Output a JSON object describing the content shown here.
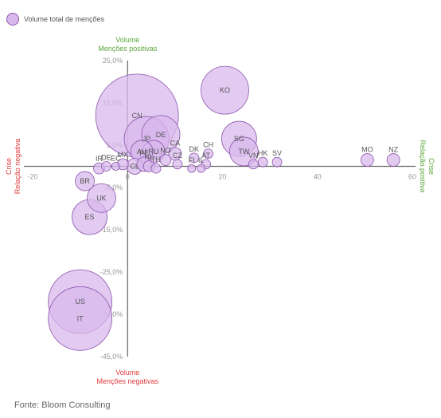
{
  "legend": {
    "label": "Volume total de menções"
  },
  "source": "Fonte: Bloom Consulting",
  "colors": {
    "bubble_fill": "#d8b8ec",
    "bubble_stroke": "#8d55ad",
    "positive": "#5aa53a",
    "negative": "#e03a3a",
    "axis": "#666666",
    "tick": "#999999",
    "label": "#555555"
  },
  "chart_data": {
    "type": "bubble",
    "x_axis": {
      "range": [
        -20,
        60
      ],
      "ticks": [
        -20,
        0,
        20,
        40,
        60
      ],
      "tick_labels": [
        "-20",
        "0",
        "20",
        "40",
        "60"
      ],
      "left_title": [
        "Crise",
        "Relação negativa"
      ],
      "right_title": [
        "Crise",
        "Relação positiva"
      ]
    },
    "y_axis": {
      "range": [
        -45,
        25
      ],
      "ticks": [
        25,
        15,
        5,
        -5,
        -15,
        -25,
        -35,
        -45
      ],
      "tick_labels": [
        "25,0%",
        "15,0%",
        "5,0%",
        "-5,0%",
        "-15,0%",
        "-25,0%",
        "-35,0%",
        "-45,0%"
      ],
      "top_title": [
        "Volume",
        "Menções positivas"
      ],
      "bottom_title": [
        "Volume",
        "Menções negativas"
      ]
    },
    "points": [
      {
        "label": "KO",
        "x": 20.5,
        "y": 18.0,
        "size": 30
      },
      {
        "label": "CN",
        "x": 2.0,
        "y": 12.0,
        "size": 52
      },
      {
        "label": "SG",
        "x": 23.5,
        "y": 6.5,
        "size": 22
      },
      {
        "label": "DE",
        "x": 7.0,
        "y": 7.5,
        "size": 24
      },
      {
        "label": "JP",
        "x": 4.0,
        "y": 6.5,
        "size": 28
      },
      {
        "label": "RU",
        "x": 5.5,
        "y": 3.5,
        "size": 14
      },
      {
        "label": "AU",
        "x": 3.0,
        "y": 3.5,
        "size": 14
      },
      {
        "label": "TW",
        "x": 24.5,
        "y": 3.5,
        "size": 18
      },
      {
        "label": "CA",
        "x": 10.0,
        "y": 3.0,
        "size": 8
      },
      {
        "label": "CH",
        "x": 17.0,
        "y": 3.0,
        "size": 6
      },
      {
        "label": "DK",
        "x": 14.0,
        "y": 2.0,
        "size": 6
      },
      {
        "label": "NO",
        "x": 8.0,
        "y": 1.5,
        "size": 7
      },
      {
        "label": "CZ",
        "x": 10.5,
        "y": 0.5,
        "size": 6
      },
      {
        "label": "AT",
        "x": 16.5,
        "y": 0.5,
        "size": 6
      },
      {
        "label": "FI",
        "x": 13.5,
        "y": -0.5,
        "size": 5
      },
      {
        "label": "IL",
        "x": 15.5,
        "y": -0.5,
        "size": 5
      },
      {
        "label": "NZ",
        "x": 56.0,
        "y": 1.5,
        "size": 8
      },
      {
        "label": "MO",
        "x": 50.5,
        "y": 1.5,
        "size": 8
      },
      {
        "label": "SV",
        "x": 31.5,
        "y": 1.0,
        "size": 6
      },
      {
        "label": "HK",
        "x": 28.5,
        "y": 1.0,
        "size": 6
      },
      {
        "label": "VN",
        "x": 26.5,
        "y": 0.5,
        "size": 6
      },
      {
        "label": "IR",
        "x": -6.0,
        "y": -0.5,
        "size": 7
      },
      {
        "label": "DE",
        "x": -4.5,
        "y": 0.0,
        "size": 6
      },
      {
        "label": "EC",
        "x": -2.5,
        "y": 0.0,
        "size": 5
      },
      {
        "label": "MX",
        "x": -1.0,
        "y": 0.5,
        "size": 7
      },
      {
        "label": "CL",
        "x": 1.5,
        "y": 0.0,
        "size": 10
      },
      {
        "label": "PE",
        "x": 3.5,
        "y": 0.5,
        "size": 9
      },
      {
        "label": "NL",
        "x": 4.5,
        "y": 0.0,
        "size": 7
      },
      {
        "label": "TH",
        "x": 6.0,
        "y": -0.5,
        "size": 6
      },
      {
        "label": "BR",
        "x": -9.0,
        "y": -3.5,
        "size": 12
      },
      {
        "label": "UK",
        "x": -5.5,
        "y": -7.5,
        "size": 18
      },
      {
        "label": "ES",
        "x": -8.0,
        "y": -12.0,
        "size": 22
      },
      {
        "label": "US",
        "x": -10.0,
        "y": -32.0,
        "size": 40
      },
      {
        "label": "IT",
        "x": -10.0,
        "y": -36.0,
        "size": 40
      }
    ]
  }
}
